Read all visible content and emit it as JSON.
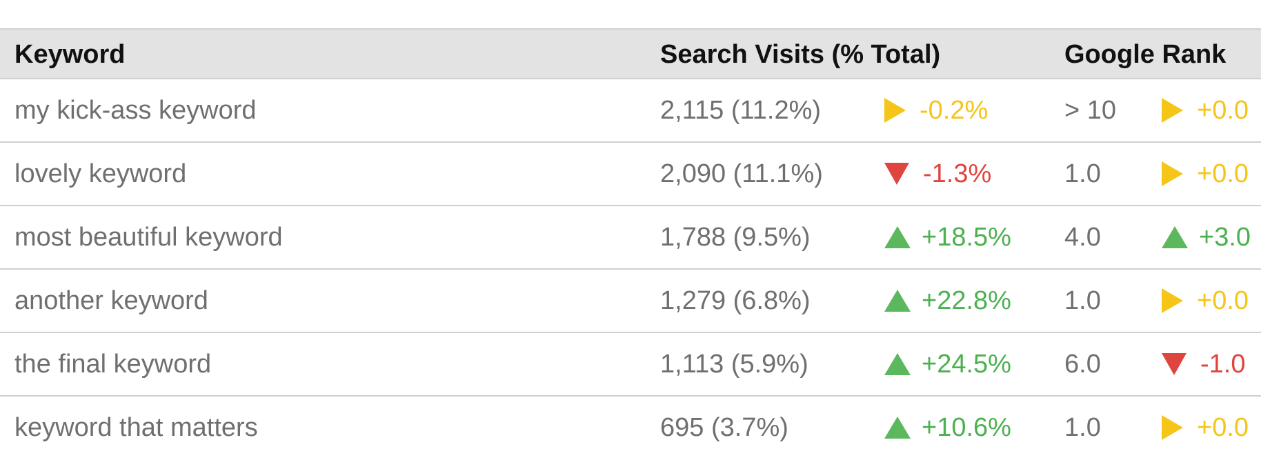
{
  "table": {
    "headers": {
      "keyword": "Keyword",
      "visits": "Search Visits (% Total)",
      "rank": "Google Rank"
    },
    "rows": [
      {
        "keyword": "my kick-ass keyword",
        "visits": "2,115 (11.2%)",
        "visits_change": "-0.2%",
        "visits_trend": "flat",
        "rank": "> 10",
        "rank_change": "+0.0",
        "rank_trend": "flat"
      },
      {
        "keyword": "lovely keyword",
        "visits": "2,090 (11.1%)",
        "visits_change": "-1.3%",
        "visits_trend": "down",
        "rank": "1.0",
        "rank_change": "+0.0",
        "rank_trend": "flat"
      },
      {
        "keyword": "most beautiful keyword",
        "visits": "1,788 (9.5%)",
        "visits_change": "+18.5%",
        "visits_trend": "up",
        "rank": "4.0",
        "rank_change": "+3.0",
        "rank_trend": "up"
      },
      {
        "keyword": "another keyword",
        "visits": "1,279 (6.8%)",
        "visits_change": "+22.8%",
        "visits_trend": "up",
        "rank": "1.0",
        "rank_change": "+0.0",
        "rank_trend": "flat"
      },
      {
        "keyword": "the final keyword",
        "visits": "1,113 (5.9%)",
        "visits_change": "+24.5%",
        "visits_trend": "up",
        "rank": "6.0",
        "rank_change": "-1.0",
        "rank_trend": "down"
      },
      {
        "keyword": "keyword that matters",
        "visits": "695 (3.7%)",
        "visits_change": "+10.6%",
        "visits_trend": "up",
        "rank": "1.0",
        "rank_change": "+0.0",
        "rank_trend": "flat"
      }
    ]
  },
  "icons": {
    "up": "triangle-up-icon",
    "down": "triangle-down-icon",
    "flat": "triangle-right-icon"
  },
  "colors": {
    "up": "#4cb050",
    "down": "#e0443e",
    "flat": "#f5c518",
    "header_bg": "#e3e3e3"
  }
}
